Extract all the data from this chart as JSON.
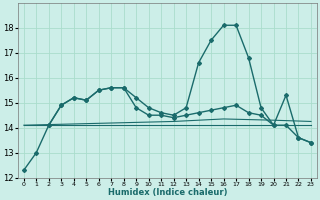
{
  "title": "",
  "xlabel": "Humidex (Indice chaleur)",
  "ylabel": "",
  "bg_color": "#cceee8",
  "line_color": "#1a6b6b",
  "grid_color": "#aaddcc",
  "xlim": [
    -0.5,
    23.5
  ],
  "ylim": [
    12,
    19
  ],
  "yticks": [
    12,
    13,
    14,
    15,
    16,
    17,
    18
  ],
  "xticks": [
    0,
    1,
    2,
    3,
    4,
    5,
    6,
    7,
    8,
    9,
    10,
    11,
    12,
    13,
    14,
    15,
    16,
    17,
    18,
    19,
    20,
    21,
    22,
    23
  ],
  "xtick_labels": [
    "0",
    "1",
    "2",
    "3",
    "4",
    "5",
    "6",
    "7",
    "8",
    "9",
    "10",
    "11",
    "12",
    "13",
    "14",
    "15",
    "16",
    "17",
    "18",
    "19",
    "20",
    "21",
    "22",
    "23"
  ],
  "series": [
    {
      "x": [
        0,
        1,
        2,
        3,
        4,
        5,
        6,
        7,
        8,
        9,
        10,
        11,
        12,
        13,
        14,
        15,
        16,
        17,
        18,
        19,
        20,
        21,
        22,
        23
      ],
      "y": [
        12.3,
        13.0,
        14.1,
        14.9,
        15.2,
        15.1,
        15.5,
        15.6,
        15.6,
        15.2,
        14.8,
        14.6,
        14.5,
        14.8,
        16.6,
        17.5,
        18.1,
        18.1,
        16.8,
        14.8,
        14.1,
        14.1,
        13.6,
        13.4
      ],
      "marker": "D",
      "markersize": 2.0,
      "linewidth": 1.0
    },
    {
      "x": [
        2,
        3,
        4,
        5,
        6,
        7,
        8,
        9,
        10,
        11,
        12,
        13,
        14,
        15,
        16,
        17,
        18,
        19,
        20,
        21,
        22,
        23
      ],
      "y": [
        14.1,
        14.9,
        15.2,
        15.1,
        15.5,
        15.6,
        15.6,
        14.8,
        14.5,
        14.5,
        14.4,
        14.5,
        14.6,
        14.7,
        14.8,
        14.9,
        14.6,
        14.5,
        14.1,
        15.3,
        13.6,
        13.4
      ],
      "marker": "D",
      "markersize": 2.0,
      "linewidth": 1.0
    },
    {
      "x": [
        0,
        23
      ],
      "y": [
        14.1,
        14.1
      ],
      "marker": null,
      "markersize": 0,
      "linewidth": 0.8
    },
    {
      "x": [
        0,
        4,
        8,
        12,
        16,
        20,
        23
      ],
      "y": [
        14.1,
        14.15,
        14.2,
        14.25,
        14.35,
        14.3,
        14.25
      ],
      "marker": null,
      "markersize": 0,
      "linewidth": 0.8
    }
  ]
}
